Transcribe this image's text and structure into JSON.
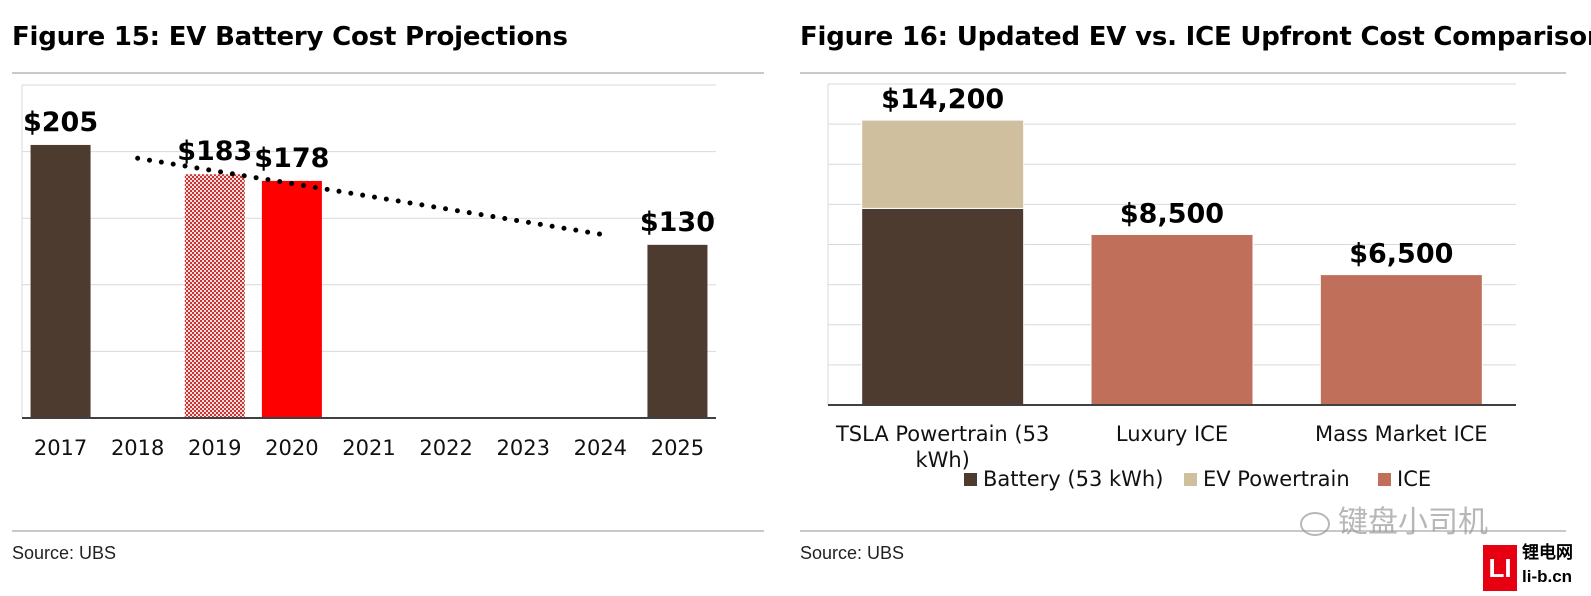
{
  "left": {
    "title": "Figure 15: EV Battery Cost Projections",
    "source": "Source: UBS"
  },
  "right": {
    "title": "Figure 16: Updated EV vs. ICE Upfront Cost Comparison",
    "source": "Source: UBS"
  },
  "watermark": {
    "text": "键盘小司机",
    "logo_mark": "LI",
    "logo_name": "锂电网",
    "logo_url": "li-b.cn"
  },
  "colors": {
    "dark_brown": "#4e3b30",
    "red": "#ff0000",
    "red_pattern": "#cc3333",
    "tan": "#cfbf9f",
    "ice": "#c0705a",
    "grid": "#d9d9d9",
    "axis": "#404040"
  },
  "chart_data": [
    {
      "type": "bar",
      "title": "Figure 15: EV Battery Cost Projections",
      "categories": [
        "2017",
        "2018",
        "2019",
        "2020",
        "2021",
        "2022",
        "2023",
        "2024",
        "2025"
      ],
      "values": [
        205,
        null,
        183,
        178,
        null,
        null,
        null,
        null,
        130
      ],
      "data_labels": [
        "$205",
        "",
        "$183",
        "$178",
        "",
        "",
        "",
        "",
        "$130"
      ],
      "bar_styles": [
        "solid-dark",
        "none",
        "patterned-red",
        "solid-red",
        "none",
        "none",
        "none",
        "none",
        "solid-dark"
      ],
      "trendline": {
        "style": "dotted",
        "from": {
          "x": "2018",
          "y": 195
        },
        "to": {
          "x": "2024",
          "y": 138
        }
      },
      "ylim": [
        0,
        250
      ],
      "grid": true,
      "xlabel": "",
      "ylabel": ""
    },
    {
      "type": "bar",
      "stacked": true,
      "title": "Figure 16: Updated EV vs. ICE Upfront Cost Comparison",
      "categories": [
        "TSLA Powertrain (53 kWh)",
        "Luxury ICE",
        "Mass Market ICE"
      ],
      "series": [
        {
          "name": "Battery (53 kWh)",
          "values": [
            9800,
            0,
            0
          ]
        },
        {
          "name": "EV Powertrain",
          "values": [
            4400,
            0,
            0
          ]
        },
        {
          "name": "ICE",
          "values": [
            0,
            8500,
            6500
          ]
        }
      ],
      "totals_labels": [
        "$14,200",
        "$8,500",
        "$6,500"
      ],
      "ylim": [
        0,
        16000
      ],
      "grid": true,
      "legend": "bottom"
    }
  ]
}
